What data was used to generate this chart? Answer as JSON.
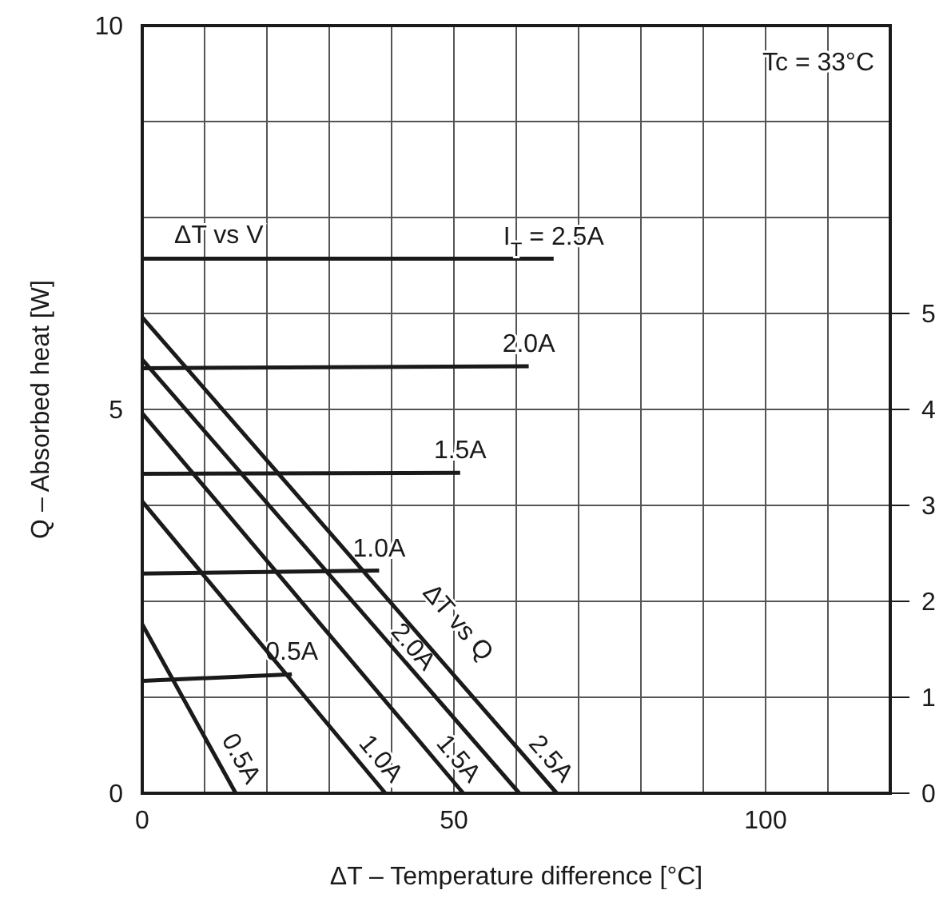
{
  "chart_data": {
    "type": "line",
    "xlabel": "ΔT – Temperature difference [°C]",
    "ylabel": "Q – Absorbed heat [W]",
    "xlim": [
      0,
      120
    ],
    "xticks": [
      0,
      {
        "value": 10,
        "label": null
      },
      {
        "value": 20,
        "label": null
      },
      {
        "value": 30,
        "label": null
      },
      {
        "value": 40,
        "label": null
      },
      50,
      {
        "value": 60,
        "label": null
      },
      {
        "value": 70,
        "label": null
      },
      {
        "value": 80,
        "label": null
      },
      {
        "value": 90,
        "label": null
      },
      100,
      {
        "value": 110,
        "label": null
      },
      {
        "value": 120,
        "label": null
      }
    ],
    "ylim": [
      0,
      10
    ],
    "yticks": [
      0,
      5,
      10
    ],
    "y2lim": [
      0,
      8
    ],
    "y2ticks": [
      0,
      1,
      2,
      3,
      4,
      5,
      {
        "value": 6,
        "label": null
      },
      {
        "value": 7,
        "label": null
      },
      {
        "value": 8,
        "label": null
      }
    ],
    "grid": true,
    "annotations": [
      "Tc = 33°C",
      "ΔT vs V",
      "ΔT vs Q"
    ],
    "series": [
      {
        "name": "I$_{T}$ = 2.5A",
        "color": "#1a1a1a",
        "axis": "y2",
        "x": [
          0,
          66
        ],
        "values": [
          5.57,
          5.57
        ]
      },
      {
        "name": "2.0A",
        "color": "#1a1a1a",
        "axis": "y2",
        "x": [
          0,
          62
        ],
        "values": [
          4.43,
          4.45
        ]
      },
      {
        "name": "1.5A",
        "color": "#1a1a1a",
        "axis": "y2",
        "x": [
          0,
          51
        ],
        "values": [
          3.33,
          3.34
        ]
      },
      {
        "name": "1.0A",
        "color": "#1a1a1a",
        "axis": "y2",
        "x": [
          0,
          38
        ],
        "values": [
          2.29,
          2.32
        ]
      },
      {
        "name": "0.5A",
        "color": "#1a1a1a",
        "axis": "y2",
        "x": [
          0,
          24
        ],
        "values": [
          1.17,
          1.24
        ]
      },
      {
        "name": "0.5A",
        "color": "#1a1a1a",
        "x": [
          0,
          15
        ],
        "values": [
          2.2,
          0
        ]
      },
      {
        "name": "1.0A",
        "color": "#1a1a1a",
        "x": [
          0,
          39
        ],
        "values": [
          3.8,
          0
        ]
      },
      {
        "name": "1.5A",
        "color": "#1a1a1a",
        "x": [
          0,
          51.5
        ],
        "values": [
          4.95,
          0
        ]
      },
      {
        "name": "2.0A",
        "color": "#1a1a1a",
        "x": [
          0,
          60.5
        ],
        "values": [
          5.65,
          0
        ]
      },
      {
        "name": "2.5A",
        "color": "#1a1a1a",
        "x": [
          0,
          66.5
        ],
        "values": [
          6.2,
          0
        ]
      }
    ]
  }
}
